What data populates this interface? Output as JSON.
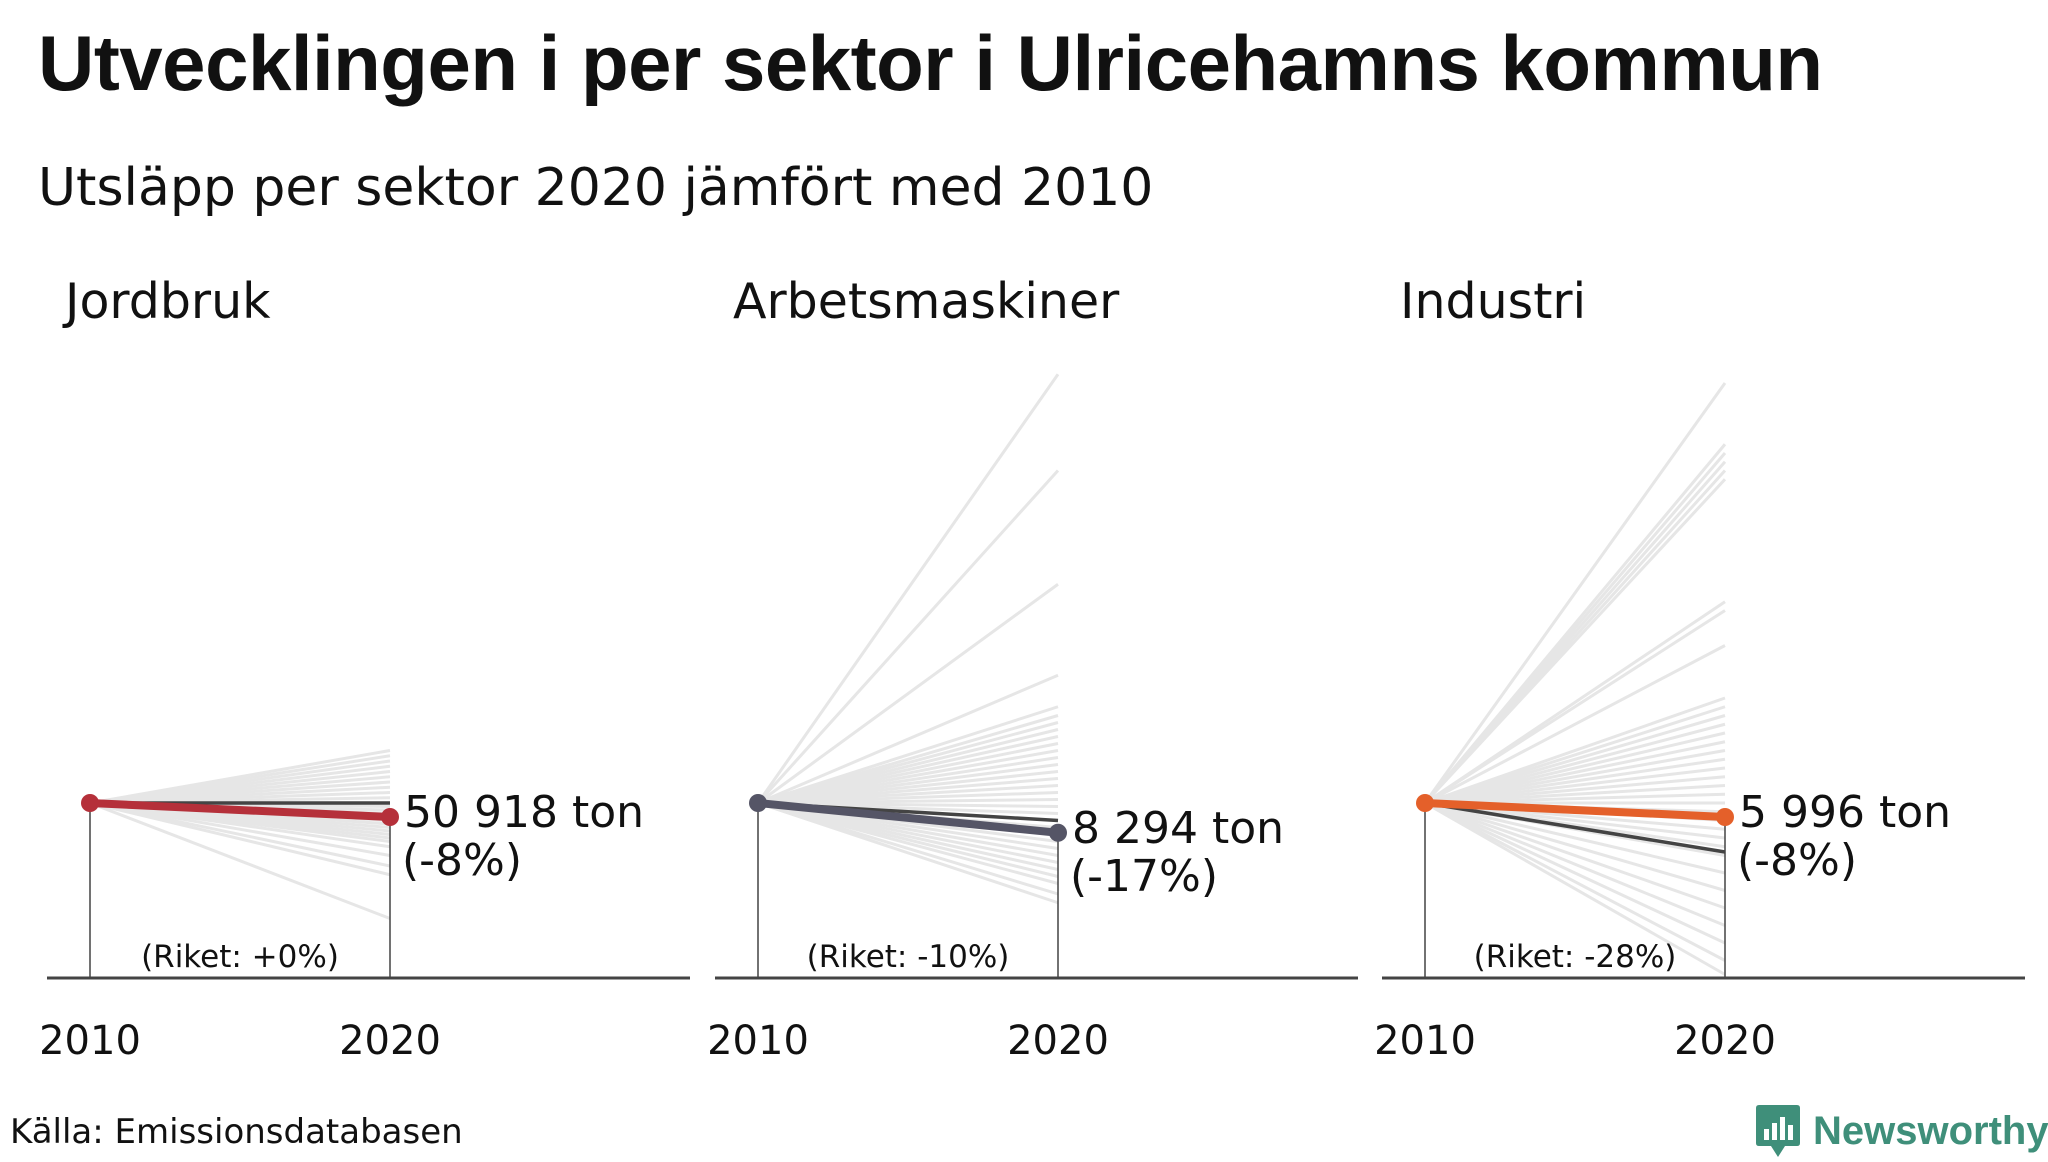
{
  "title": "Utvecklingen i per sektor i Ulricehamns kommun",
  "subtitle": "Utsläpp per sektor 2020 jämfört med 2010",
  "source": "Källa: Emissionsdatabasen",
  "logo": {
    "text": "Newsworthy",
    "icon": "bar-chart-speech-bubble-icon",
    "color": "#3f8f7a"
  },
  "colors": {
    "axis": "#444444",
    "national": "#444444",
    "background_lines": "#e6e6e6"
  },
  "chart_data": [
    {
      "type": "line",
      "title": "Jordbruk",
      "x": [
        "2010",
        "2020"
      ],
      "ylim": [
        0,
        1.75
      ],
      "highlight": {
        "values": [
          1,
          0.92
        ],
        "color": "#b5303a"
      },
      "national": {
        "values": [
          1,
          1.0
        ]
      },
      "label_value": "50 918 ton",
      "label_pct": "(-8%)",
      "riket": "(Riket: +0%)",
      "others": [
        1.3,
        1.27,
        1.24,
        1.21,
        1.18,
        1.15,
        1.12,
        1.09,
        1.06,
        1.03,
        1.0,
        0.98,
        0.96,
        0.94,
        0.92,
        0.9,
        0.88,
        0.86,
        0.84,
        0.82,
        0.8,
        0.78,
        0.75,
        0.7,
        0.64,
        0.59,
        0.34
      ]
    },
    {
      "type": "line",
      "title": "Arbetsmaskiner",
      "x": [
        "2010",
        "2020"
      ],
      "ylim": [
        0,
        1.75
      ],
      "highlight": {
        "values": [
          1,
          0.83
        ],
        "color": "#555566"
      },
      "national": {
        "values": [
          1,
          0.9
        ]
      },
      "label_value": "8 294 ton",
      "label_pct": "(-17%)",
      "riket": "(Riket: -10%)",
      "others": [
        3.45,
        2.9,
        2.25,
        1.73,
        1.55,
        1.5,
        1.46,
        1.42,
        1.38,
        1.34,
        1.3,
        1.26,
        1.22,
        1.18,
        1.14,
        1.1,
        1.06,
        1.02,
        0.98,
        0.94,
        0.9,
        0.86,
        0.82,
        0.78,
        0.74,
        0.7,
        0.66,
        0.62,
        0.58,
        0.54,
        0.48,
        0.43
      ]
    },
    {
      "type": "line",
      "title": "Industri",
      "x": [
        "2010",
        "2020"
      ],
      "ylim": [
        0,
        1.75
      ],
      "highlight": {
        "values": [
          1,
          0.92
        ],
        "color": "#e4602a"
      },
      "national": {
        "values": [
          1,
          0.72
        ]
      },
      "label_value": "5 996 ton",
      "label_pct": "(-8%)",
      "riket": "(Riket: -28%)",
      "others": [
        3.4,
        3.05,
        3.0,
        2.95,
        2.9,
        2.85,
        2.15,
        2.1,
        1.9,
        1.6,
        1.55,
        1.5,
        1.45,
        1.4,
        1.35,
        1.3,
        1.25,
        1.2,
        1.15,
        1.1,
        1.05,
        1.0,
        0.95,
        0.9,
        0.85,
        0.8,
        0.75,
        0.7,
        0.6,
        0.5,
        0.4,
        0.3,
        0.2,
        0.1,
        0.02
      ]
    }
  ]
}
